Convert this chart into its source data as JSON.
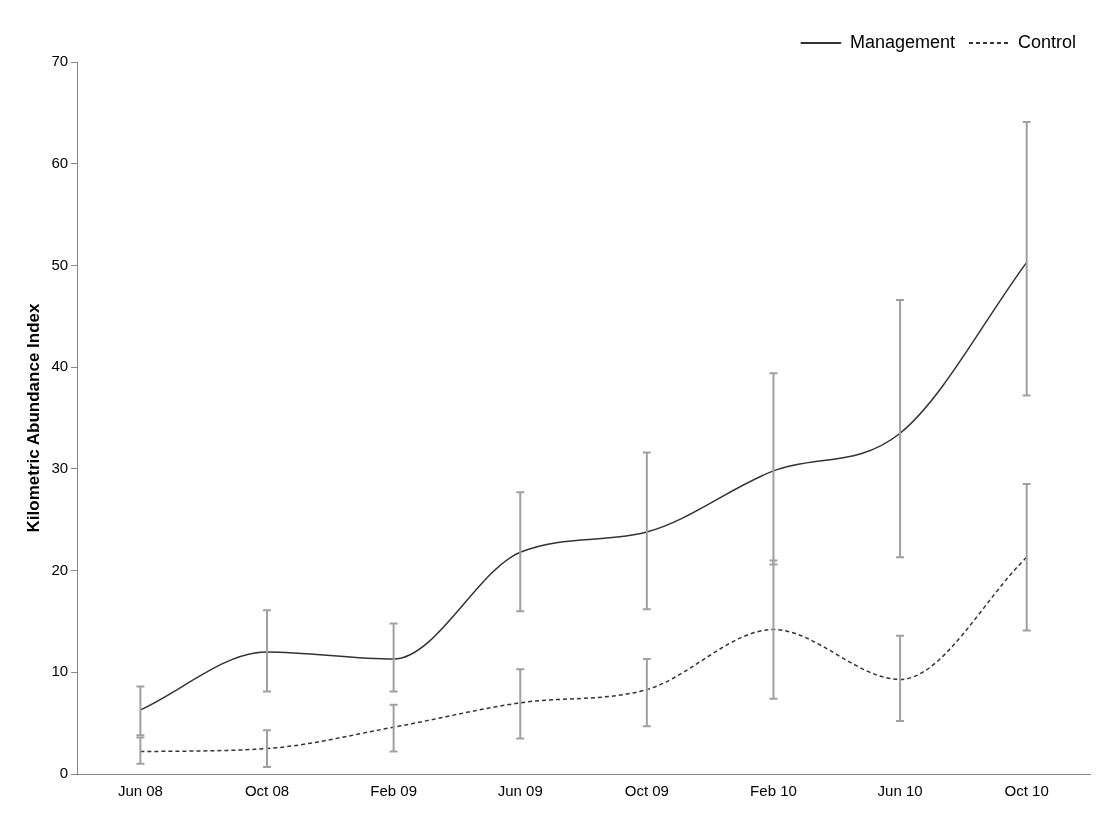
{
  "chart_data": {
    "type": "line",
    "ylabel": "Kilometric Abundance Index",
    "categories": [
      "Jun 08",
      "Oct 08",
      "Feb 09",
      "Jun 09",
      "Oct 09",
      "Feb 10",
      "Jun 10",
      "Oct 10"
    ],
    "series": [
      {
        "name": "Management",
        "color": "#333333",
        "line_style": "solid",
        "values": [
          6.3,
          12,
          11.3,
          21.8,
          23.8,
          29.8,
          33.5,
          50.3
        ],
        "errors": [
          [
            3.8,
            8.6
          ],
          [
            8.1,
            16.1
          ],
          [
            8.1,
            14.8
          ],
          [
            16,
            27.7
          ],
          [
            16.2,
            31.6
          ],
          [
            20.6,
            39.4
          ],
          [
            21.3,
            46.6
          ],
          [
            37.2,
            64.1
          ]
        ]
      },
      {
        "name": "Control",
        "color": "#333333",
        "line_style": "dashed",
        "values": [
          2.2,
          2.5,
          4.6,
          7,
          8.3,
          14.2,
          9.3,
          21.3
        ],
        "errors": [
          [
            1,
            3.6
          ],
          [
            0.7,
            4.3
          ],
          [
            2.2,
            6.8
          ],
          [
            3.5,
            10.3
          ],
          [
            4.7,
            11.3
          ],
          [
            7.4,
            21
          ],
          [
            5.2,
            13.6
          ],
          [
            14.1,
            28.5
          ]
        ]
      }
    ],
    "ylim": [
      0,
      70
    ],
    "yticks": [
      0,
      10,
      20,
      30,
      40,
      50,
      60,
      70
    ],
    "grid": false,
    "legend": "top right",
    "marker": "none"
  }
}
